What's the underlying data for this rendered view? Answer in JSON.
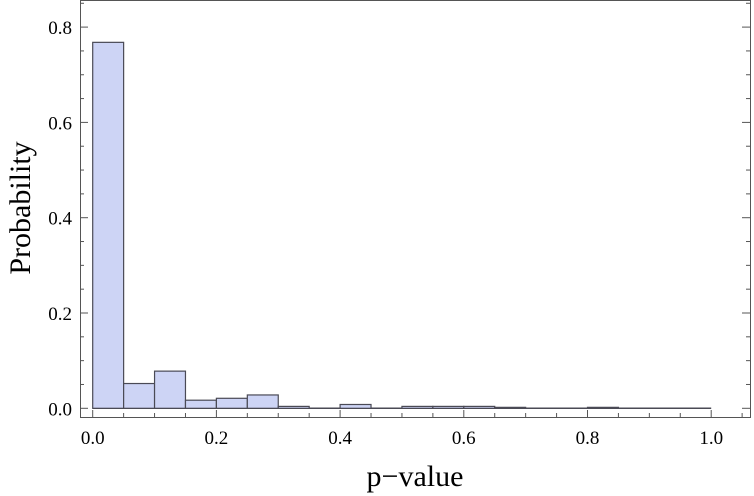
{
  "chart_data": {
    "type": "bar",
    "title": "",
    "xlabel": "p−value",
    "ylabel": "Probability",
    "bin_width": 0.05,
    "bins": [
      0.0,
      0.05,
      0.1,
      0.15,
      0.2,
      0.25,
      0.3,
      0.35,
      0.4,
      0.45,
      0.5,
      0.55,
      0.6,
      0.65,
      0.7,
      0.75,
      0.8,
      0.85,
      0.9,
      0.95
    ],
    "values": [
      0.768,
      0.052,
      0.078,
      0.017,
      0.021,
      0.028,
      0.004,
      0.0,
      0.008,
      0.0,
      0.004,
      0.004,
      0.004,
      0.002,
      0.0,
      0.0,
      0.002,
      0.0,
      0.0,
      0.0
    ],
    "xlim": [
      -0.04,
      1.05
    ],
    "ylim": [
      -0.02,
      0.855
    ],
    "xticks": [
      "0.0",
      "0.2",
      "0.4",
      "0.6",
      "0.8",
      "1.0"
    ],
    "yticks": [
      "0.0",
      "0.2",
      "0.4",
      "0.6",
      "0.8"
    ],
    "grid": false,
    "bar_color": "#cdd4f5",
    "edge_color": "#4a4a55"
  }
}
